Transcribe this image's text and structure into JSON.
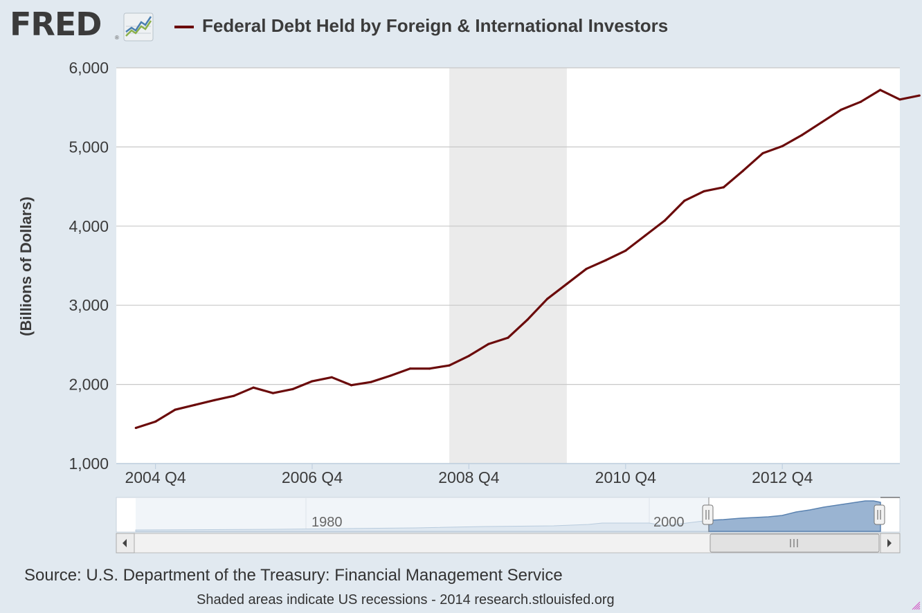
{
  "header": {
    "logo_text": "FRED",
    "logo_mark": "®",
    "logo_icon": "line-chart-icon",
    "series_title": "Federal Debt Held by Foreign & International Investors",
    "series_color": "#6b0b0b"
  },
  "chart_data": {
    "type": "line",
    "title": "Federal Debt Held by Foreign & International Investors",
    "xlabel": "",
    "ylabel": "(Billions of Dollars)",
    "ylim": [
      1000,
      6000
    ],
    "yticks": [
      "6,000",
      "5,000",
      "4,000",
      "3,000",
      "2,000",
      "1,000"
    ],
    "ytick_values": [
      6000,
      5000,
      4000,
      3000,
      2000,
      1000
    ],
    "xticks": [
      "2004 Q4",
      "2006 Q4",
      "2008 Q4",
      "2010 Q4",
      "2012 Q4"
    ],
    "xtick_index": [
      1,
      9,
      17,
      25,
      33
    ],
    "x_range_index": [
      -1,
      39
    ],
    "grid": true,
    "legend": "top",
    "recession_shading": {
      "start_index": 16.0,
      "end_index": 22.0,
      "color": "#ebebeb"
    },
    "series": [
      {
        "color": "#6b0b0b",
        "x": [
          "2004 Q2",
          "2004 Q3",
          "2004 Q4",
          "2005 Q1",
          "2005 Q2",
          "2005 Q3",
          "2005 Q4",
          "2006 Q1",
          "2006 Q2",
          "2006 Q3",
          "2006 Q4",
          "2007 Q1",
          "2007 Q2",
          "2007 Q3",
          "2007 Q4",
          "2008 Q1",
          "2008 Q2",
          "2008 Q3",
          "2008 Q4",
          "2009 Q1",
          "2009 Q2",
          "2009 Q3",
          "2009 Q4",
          "2010 Q1",
          "2010 Q2",
          "2010 Q3",
          "2010 Q4",
          "2011 Q1",
          "2011 Q2",
          "2011 Q3",
          "2011 Q4",
          "2012 Q1",
          "2012 Q2",
          "2012 Q3",
          "2012 Q4",
          "2013 Q1",
          "2013 Q2",
          "2013 Q3",
          "2013 Q4",
          "2014 Q1",
          "2014 Q2"
        ],
        "values": [
          1450,
          1530,
          1680,
          1740,
          1800,
          1855,
          1960,
          1890,
          1940,
          2040,
          2090,
          1990,
          2030,
          2110,
          2200,
          2200,
          2240,
          2360,
          2510,
          2590,
          2820,
          3080,
          3270,
          3460,
          3570,
          3690,
          3880,
          4070,
          4320,
          4440,
          4490,
          4700,
          4920,
          5010,
          5150,
          5310,
          5470,
          5570,
          5720,
          5600,
          5650
        ]
      }
    ]
  },
  "navigator": {
    "labels": [
      "1980",
      "2000"
    ],
    "handle_icon": "drag-handle-icon",
    "scroll_left_icon": "arrow-left-icon",
    "scroll_right_icon": "arrow-right-icon",
    "scroll_thumb_icon": "grip-icon"
  },
  "footer": {
    "source": "Source: U.S. Department of the Treasury: Financial Management Service",
    "note": "Shaded areas indicate US recessions - 2014 research.stlouisfed.org"
  }
}
